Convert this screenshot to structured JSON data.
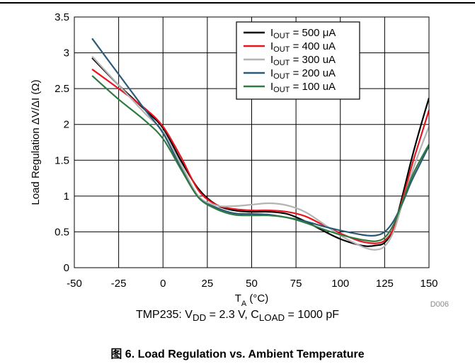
{
  "chart_data": {
    "type": "line",
    "xlabel_base": "T",
    "xlabel_sub": "A",
    "xlabel_rest": " (°C)",
    "ylabel": "Load Regulation ΔV/ΔI (Ω)",
    "xlim": [
      -50,
      150
    ],
    "ylim": [
      0,
      3.5
    ],
    "x_ticks": [
      "-50",
      "-25",
      "0",
      "25",
      "50",
      "75",
      "100",
      "125",
      "150"
    ],
    "y_ticks": [
      "0",
      "0.5",
      "1",
      "1.5",
      "2",
      "2.5",
      "3",
      "3.5"
    ],
    "grid": true,
    "legend_position": "top-right",
    "x": [
      -40,
      -25,
      -10,
      0,
      10,
      20,
      30,
      40,
      50,
      60,
      70,
      80,
      90,
      100,
      110,
      115,
      120,
      125,
      130,
      135,
      140,
      145,
      150
    ],
    "series": [
      {
        "name_base": "I",
        "name_sub": "OUT",
        "name_rest": " = 500 μA",
        "color": "#000000",
        "values": [
          2.93,
          2.55,
          2.2,
          1.95,
          1.5,
          1.1,
          0.88,
          0.8,
          0.78,
          0.78,
          0.75,
          0.65,
          0.52,
          0.4,
          0.32,
          0.3,
          0.31,
          0.35,
          0.55,
          1.0,
          1.5,
          1.95,
          2.37
        ]
      },
      {
        "name_base": "I",
        "name_sub": "OUT",
        "name_rest": " = 400 uA",
        "color": "#e8141e",
        "values": [
          2.77,
          2.5,
          2.22,
          1.97,
          1.55,
          1.08,
          0.88,
          0.82,
          0.8,
          0.8,
          0.78,
          0.72,
          0.6,
          0.48,
          0.38,
          0.35,
          0.34,
          0.38,
          0.55,
          0.95,
          1.4,
          1.8,
          2.2
        ]
      },
      {
        "name_base": "I",
        "name_sub": "OUT",
        "name_rest": " = 300 uA",
        "color": "#b4b4b4",
        "values": [
          2.95,
          2.55,
          2.15,
          1.9,
          1.45,
          1.0,
          0.87,
          0.86,
          0.88,
          0.9,
          0.87,
          0.78,
          0.62,
          0.45,
          0.32,
          0.27,
          0.25,
          0.3,
          0.5,
          0.9,
          1.3,
          1.65,
          1.97
        ]
      },
      {
        "name_base": "I",
        "name_sub": "OUT",
        "name_rest": " = 200 uA",
        "color": "#2a5a78",
        "values": [
          3.2,
          2.7,
          2.2,
          1.88,
          1.4,
          0.98,
          0.84,
          0.76,
          0.75,
          0.74,
          0.7,
          0.65,
          0.58,
          0.52,
          0.47,
          0.45,
          0.45,
          0.5,
          0.65,
          0.9,
          1.2,
          1.45,
          1.7
        ]
      },
      {
        "name_base": "I",
        "name_sub": "OUT",
        "name_rest": " = 100 uA",
        "color": "#2e7a40",
        "values": [
          2.68,
          2.35,
          2.05,
          1.8,
          1.38,
          0.98,
          0.82,
          0.74,
          0.73,
          0.73,
          0.7,
          0.63,
          0.54,
          0.46,
          0.4,
          0.38,
          0.37,
          0.42,
          0.6,
          0.92,
          1.25,
          1.5,
          1.72
        ]
      }
    ]
  },
  "figure_code": "D006",
  "conditions": {
    "prefix": "TMP235: V",
    "vdd_sub": "DD",
    "middle": " = 2.3 V, C",
    "cload_sub": "LOAD",
    "suffix": " = 1000 pF"
  },
  "caption": "图 6. Load Regulation vs. Ambient Temperature"
}
